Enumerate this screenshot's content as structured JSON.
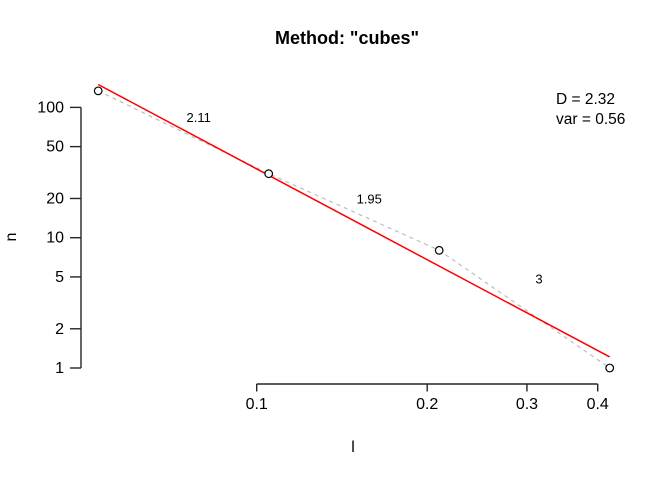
{
  "chart_data": {
    "type": "scatter",
    "title": "Method: \"cubes\"",
    "xlabel": "l",
    "ylabel": "n",
    "x_scale": "log",
    "y_scale": "log",
    "x_range": [
      0.0525,
      0.42
    ],
    "y_range": [
      1,
      134
    ],
    "points": [
      {
        "l": 0.0525,
        "n": 134
      },
      {
        "l": 0.105,
        "n": 31
      },
      {
        "l": 0.21,
        "n": 8
      },
      {
        "l": 0.42,
        "n": 1
      }
    ],
    "x_ticks": [
      {
        "value": 0.1,
        "label": "0.1"
      },
      {
        "value": 0.2,
        "label": "0.2"
      },
      {
        "value": 0.3,
        "label": "0.3"
      },
      {
        "value": 0.4,
        "label": "0.4"
      }
    ],
    "y_ticks": [
      {
        "value": 1,
        "label": "1"
      },
      {
        "value": 2,
        "label": "2"
      },
      {
        "value": 5,
        "label": "5"
      },
      {
        "value": 10,
        "label": "10"
      },
      {
        "value": 20,
        "label": "20"
      },
      {
        "value": 50,
        "label": "50"
      },
      {
        "value": 100,
        "label": "100"
      }
    ],
    "fit": {
      "method": "ols-loglog",
      "D": 2.32,
      "var": 0.56
    },
    "segment_slope_labels": [
      {
        "text": "2.11",
        "l": 0.079,
        "n": 84
      },
      {
        "text": "1.95",
        "l": 0.158,
        "n": 19.9
      },
      {
        "text": "3",
        "l": 0.315,
        "n": 4.8
      }
    ],
    "stats_box": {
      "lines": [
        "D = 2.32",
        "var = 0.56"
      ]
    },
    "legend_position": "top-right",
    "grid": false,
    "colors": {
      "fit_line": "#ff0000",
      "data_line": "#bdbdbd",
      "point_stroke": "#000000",
      "axis": "#262626",
      "text": "#000000",
      "background": "#ffffff"
    }
  }
}
